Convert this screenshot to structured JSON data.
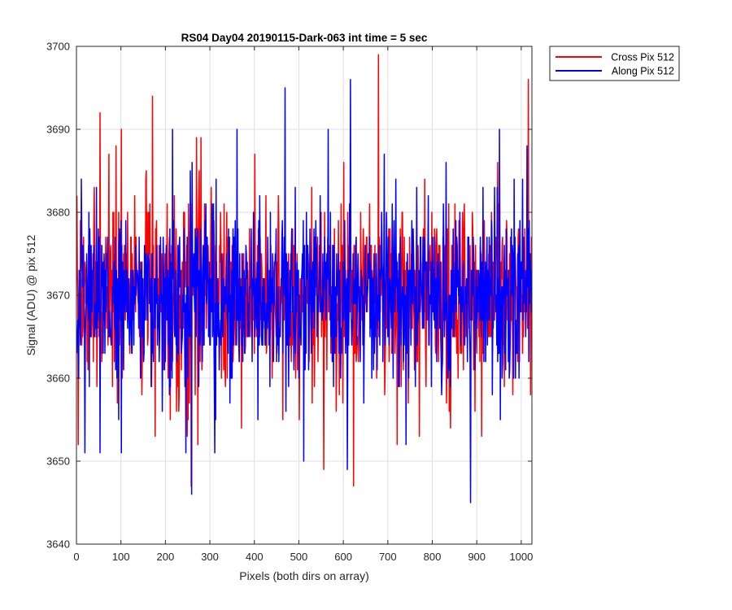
{
  "chart_data": {
    "type": "line",
    "title": "RS04 Day04 20190115-Dark-063 int time = 5 sec",
    "xlabel": "Pixels (both dirs on array)",
    "ylabel": "Signal (ADU) @ pix 512",
    "xlim": [
      0,
      1024
    ],
    "ylim": [
      3640,
      3700
    ],
    "xticks": [
      0,
      100,
      200,
      300,
      400,
      500,
      600,
      700,
      800,
      900,
      1000
    ],
    "yticks": [
      3640,
      3650,
      3660,
      3670,
      3680,
      3690,
      3700
    ],
    "grid": true,
    "legend_position": "outside-top-right",
    "series": [
      {
        "name": "Cross Pix 512",
        "color": "#ff0000",
        "noise": {
          "count": 1024,
          "mean": 3670,
          "std": 5.5,
          "seed": 17
        },
        "points": [
          [
            0,
            3682
          ],
          [
            3,
            3652
          ],
          [
            8,
            3679
          ],
          [
            52,
            3692
          ],
          [
            88,
            3688
          ],
          [
            100,
            3690
          ],
          [
            170,
            3694
          ],
          [
            176,
            3653
          ],
          [
            210,
            3655
          ],
          [
            257,
            3647
          ],
          [
            370,
            3654
          ],
          [
            400,
            3687
          ],
          [
            500,
            3655
          ],
          [
            555,
            3649
          ],
          [
            600,
            3686
          ],
          [
            622,
            3647
          ],
          [
            678,
            3699
          ],
          [
            720,
            3652
          ],
          [
            770,
            3653
          ],
          [
            840,
            3654
          ],
          [
            895,
            3656
          ],
          [
            1015,
            3696
          ],
          [
            1020,
            3658
          ]
        ]
      },
      {
        "name": "Along Pix 512",
        "color": "#0000ff",
        "noise": {
          "count": 1024,
          "mean": 3670,
          "std": 5.2,
          "seed": 42
        },
        "points": [
          [
            10,
            3684
          ],
          [
            18,
            3651
          ],
          [
            52,
            3651
          ],
          [
            100,
            3651
          ],
          [
            215,
            3690
          ],
          [
            245,
            3651
          ],
          [
            258,
            3646
          ],
          [
            310,
            3651
          ],
          [
            360,
            3690
          ],
          [
            468,
            3695
          ],
          [
            510,
            3650
          ],
          [
            565,
            3690
          ],
          [
            608,
            3649
          ],
          [
            615,
            3696
          ],
          [
            740,
            3652
          ],
          [
            830,
            3686
          ],
          [
            885,
            3645
          ],
          [
            950,
            3690
          ],
          [
            1012,
            3688
          ]
        ]
      }
    ]
  }
}
